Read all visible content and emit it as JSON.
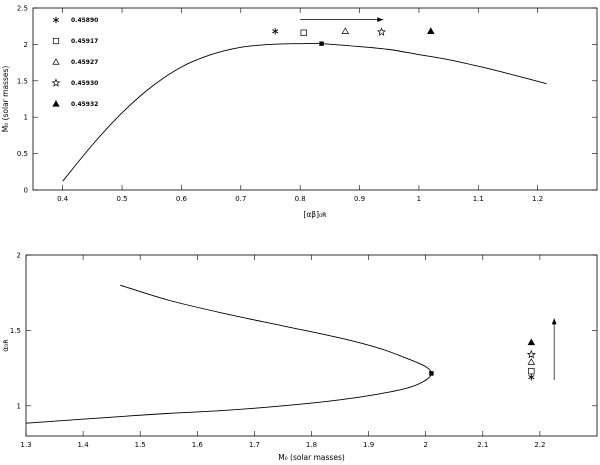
{
  "chart_data": [
    {
      "type": "line",
      "xlabel": "[αβ]₀ʀ",
      "ylabel": "M₀ (solar masses)",
      "xlim": [
        0.35,
        1.3
      ],
      "ylim": [
        0,
        2.5
      ],
      "xticks": [
        "0.4",
        "0.5",
        "0.6",
        "0.7",
        "0.8",
        "0.9",
        "1",
        "1.1",
        "1.2"
      ],
      "yticks": [
        "0",
        "0.5",
        "1",
        "1.5",
        "2",
        "2.5"
      ],
      "xtick_values": [
        0.4,
        0.5,
        0.6,
        0.7,
        0.8,
        0.9,
        1.0,
        1.1,
        1.2
      ],
      "ytick_values": [
        0,
        0.5,
        1,
        1.5,
        2,
        2.5
      ],
      "curve": {
        "x": [
          0.4,
          0.45,
          0.5,
          0.55,
          0.6,
          0.65,
          0.7,
          0.75,
          0.8,
          0.836,
          0.9,
          0.95,
          1.0,
          1.05,
          1.1,
          1.15,
          1.215
        ],
        "y": [
          0.12,
          0.62,
          1.06,
          1.42,
          1.69,
          1.86,
          1.96,
          2.0,
          2.01,
          2.01,
          1.97,
          1.93,
          1.86,
          1.79,
          1.7,
          1.6,
          1.46
        ]
      },
      "max_point": {
        "x": 0.836,
        "y": 2.01
      },
      "markers": [
        {
          "symbol": "asterisk",
          "x": 0.758,
          "y": 2.18
        },
        {
          "symbol": "open-square",
          "x": 0.806,
          "y": 2.16
        },
        {
          "symbol": "open-triangle",
          "x": 0.876,
          "y": 2.18
        },
        {
          "symbol": "open-star",
          "x": 0.937,
          "y": 2.17
        },
        {
          "symbol": "filled-triangle",
          "x": 1.02,
          "y": 2.18
        }
      ],
      "arrow": {
        "from": [
          0.8,
          2.34
        ],
        "to": [
          0.94,
          2.34
        ]
      },
      "legend": [
        {
          "symbol": "asterisk",
          "label": "0.45890"
        },
        {
          "symbol": "open-square",
          "label": "0.45917"
        },
        {
          "symbol": "open-triangle",
          "label": "0.45927"
        },
        {
          "symbol": "open-star",
          "label": "0.45930"
        },
        {
          "symbol": "filled-triangle",
          "label": "0.45932"
        }
      ],
      "legend_position": "top-left"
    },
    {
      "type": "line",
      "xlabel": "M₀ (solar masses)",
      "ylabel": "α₀ʀ",
      "xlim": [
        1.3,
        2.3
      ],
      "ylim": [
        0.8,
        2.0
      ],
      "xticks": [
        "1.3",
        "1.4",
        "1.5",
        "1.6",
        "1.7",
        "1.8",
        "1.9",
        "2",
        "2.1",
        "2.2"
      ],
      "yticks": [
        "1",
        "1.5",
        "2"
      ],
      "xtick_values": [
        1.3,
        1.4,
        1.5,
        1.6,
        1.7,
        1.8,
        1.9,
        2.0,
        2.1,
        2.2
      ],
      "ytick_values": [
        1,
        1.5,
        2
      ],
      "curve": {
        "x": [
          1.465,
          1.55,
          1.65,
          1.75,
          1.85,
          1.92,
          1.97,
          2.0,
          2.01,
          2.0,
          1.97,
          1.92,
          1.85,
          1.75,
          1.65,
          1.55,
          1.45,
          1.3
        ],
        "y": [
          1.8,
          1.7,
          1.61,
          1.53,
          1.45,
          1.38,
          1.31,
          1.26,
          1.215,
          1.17,
          1.12,
          1.08,
          1.04,
          1.0,
          0.97,
          0.95,
          0.925,
          0.885
        ]
      },
      "max_point": {
        "x": 2.01,
        "y": 1.215
      },
      "markers": [
        {
          "symbol": "filled-triangle",
          "x": 2.185,
          "y": 1.42
        },
        {
          "symbol": "open-star",
          "x": 2.185,
          "y": 1.34
        },
        {
          "symbol": "open-triangle",
          "x": 2.185,
          "y": 1.29
        },
        {
          "symbol": "open-square",
          "x": 2.185,
          "y": 1.23
        },
        {
          "symbol": "asterisk",
          "x": 2.185,
          "y": 1.19
        }
      ],
      "arrow": {
        "from": [
          2.225,
          1.17
        ],
        "to": [
          2.225,
          1.58
        ]
      }
    }
  ]
}
